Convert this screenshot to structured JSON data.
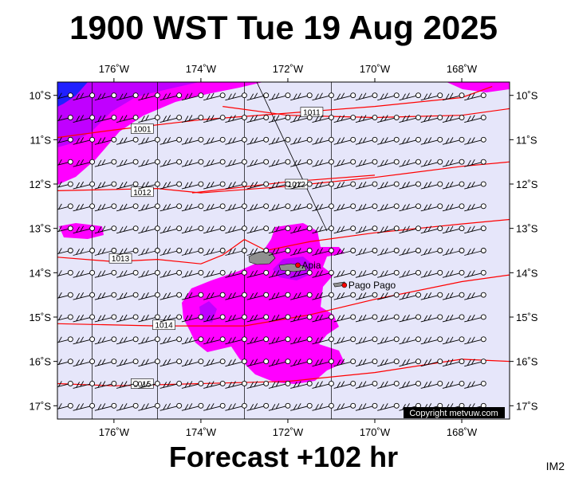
{
  "header": {
    "title": "1900 WST Tue 19 Aug 2025"
  },
  "footer": {
    "title": "Forecast +102 hr",
    "model_code": "IM2"
  },
  "map": {
    "lon_range": [
      -177.3,
      -166.9
    ],
    "lat_range": [
      -17.3,
      -9.7
    ],
    "lon_ticks": [
      {
        "value": -176,
        "label": "176˚W"
      },
      {
        "value": -174,
        "label": "174˚W"
      },
      {
        "value": -172,
        "label": "172˚W"
      },
      {
        "value": -170,
        "label": "170˚W"
      },
      {
        "value": -168,
        "label": "168˚W"
      }
    ],
    "lat_ticks": [
      {
        "value": -10,
        "label": "10˚S"
      },
      {
        "value": -11,
        "label": "11˚S"
      },
      {
        "value": -12,
        "label": "12˚S"
      },
      {
        "value": -13,
        "label": "13˚S"
      },
      {
        "value": -14,
        "label": "14˚S"
      },
      {
        "value": -15,
        "label": "15˚S"
      },
      {
        "value": -16,
        "label": "16˚S"
      },
      {
        "value": -17,
        "label": "17˚S"
      }
    ],
    "colors": {
      "ocean": "#e6e6fa",
      "precip_light": "#ff00ff",
      "precip_heavy": "#c000ff",
      "precip_deep": "#2020ff",
      "isobar": "#ff0000",
      "grid": "#000000",
      "land": "#909090",
      "city": "#ff0000"
    },
    "cities": [
      {
        "name": "Apia",
        "lon": -171.77,
        "lat": -13.83
      },
      {
        "name": "Pago Pago",
        "lon": -170.7,
        "lat": -14.28
      }
    ],
    "isobars": [
      {
        "value": 1001,
        "label": "1001",
        "points": [
          [
            -177.3,
            -10.95
          ],
          [
            -176,
            -10.78
          ],
          [
            -174,
            -10.55
          ],
          [
            -172,
            -10.4
          ],
          [
            -170,
            -10.25
          ],
          [
            -168,
            -10.05
          ],
          [
            -167.3,
            -9.8
          ]
        ]
      },
      {
        "value": 1011,
        "label": "1011",
        "points": [
          [
            -173.5,
            -10.25
          ],
          [
            -172,
            -10.45
          ],
          [
            -170,
            -10.5
          ],
          [
            -168,
            -10.45
          ],
          [
            -166.9,
            -10.3
          ]
        ]
      },
      {
        "value": 1012,
        "label": "1012",
        "points": [
          [
            -177.3,
            -12.15
          ],
          [
            -175,
            -12.1
          ],
          [
            -174,
            -12.2
          ],
          [
            -172,
            -12.05
          ],
          [
            -170,
            -11.85
          ],
          [
            -168,
            -11.6
          ],
          [
            -166.9,
            -11.5
          ]
        ]
      },
      {
        "value": 1012,
        "label": "1012",
        "points": [
          [
            -174.2,
            -12.2
          ],
          [
            -172,
            -11.95
          ],
          [
            -170,
            -11.8
          ]
        ]
      },
      {
        "value": 1013,
        "label": "1013",
        "points": [
          [
            -177.3,
            -13.65
          ],
          [
            -176,
            -13.75
          ],
          [
            -175,
            -13.7
          ],
          [
            -174,
            -13.8
          ],
          [
            -173.5,
            -13.6
          ],
          [
            -173,
            -13.25
          ],
          [
            -172.5,
            -13.5
          ],
          [
            -171.5,
            -13.3
          ],
          [
            -170,
            -13.1
          ],
          [
            -168,
            -12.9
          ],
          [
            -166.9,
            -12.8
          ]
        ]
      },
      {
        "value": 1014,
        "label": "1014",
        "points": [
          [
            -177.3,
            -15.15
          ],
          [
            -175,
            -15.2
          ],
          [
            -173,
            -15.2
          ],
          [
            -171.5,
            -14.95
          ],
          [
            -170,
            -14.6
          ],
          [
            -168,
            -14.2
          ],
          [
            -166.9,
            -14.05
          ]
        ]
      },
      {
        "value": 1015,
        "label": "1015",
        "points": [
          [
            -177.3,
            -16.5
          ],
          [
            -176,
            -16.55
          ],
          [
            -174,
            -16.5
          ],
          [
            -172,
            -16.45
          ],
          [
            -170,
            -16.25
          ],
          [
            -168,
            -15.95
          ],
          [
            -166.9,
            -16.0
          ]
        ]
      }
    ],
    "wind_grid": {
      "lon_start": -177.0,
      "lon_step": 0.5,
      "lat_start": -10.0,
      "lat_step": 0.5
    },
    "copyright": "Copyright metvuw.com"
  }
}
